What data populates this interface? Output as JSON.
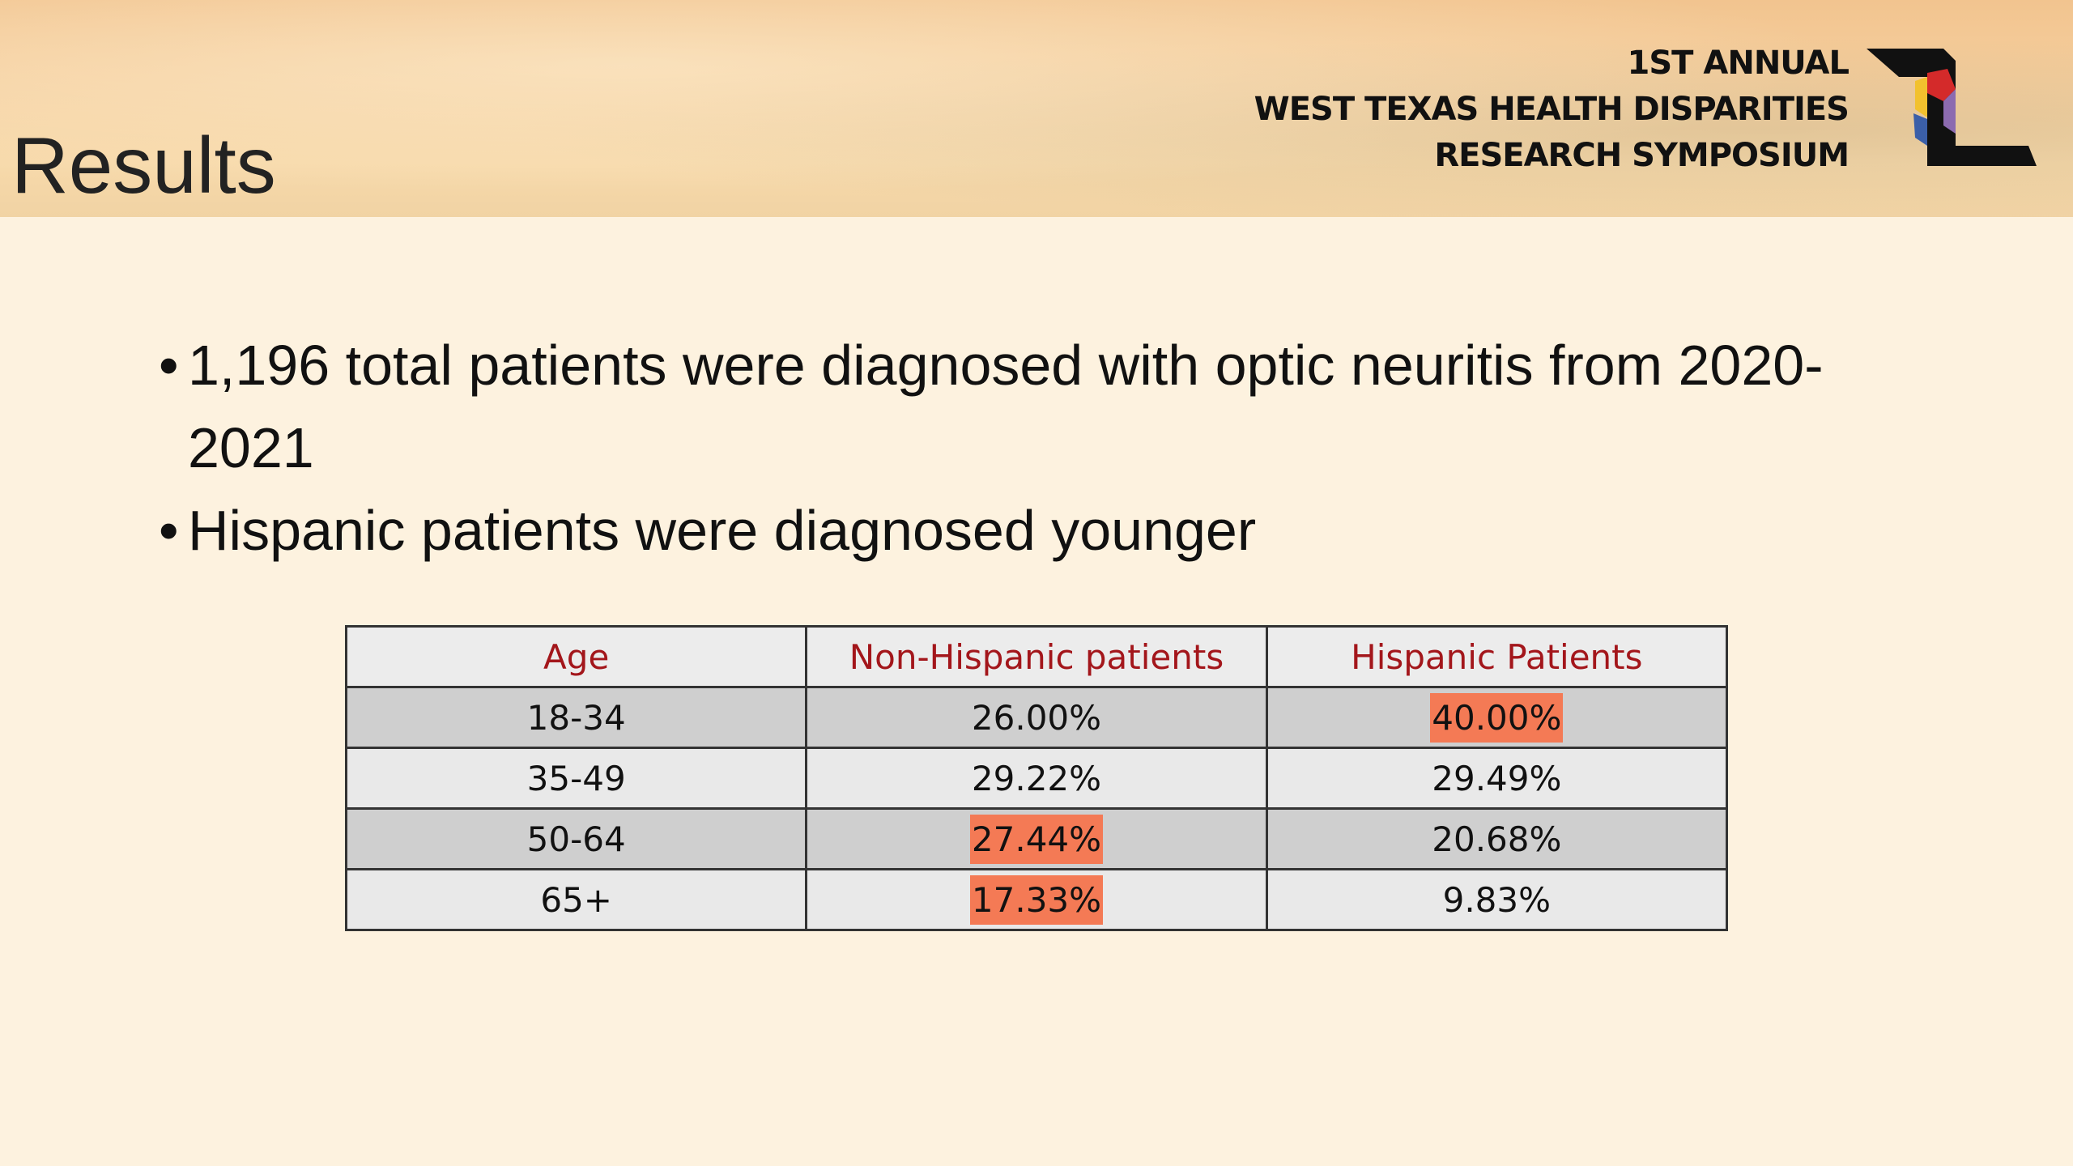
{
  "header": {
    "title": "Results",
    "event": [
      "1ST ANNUAL",
      "WEST TEXAS HEALTH DISPARITIES",
      "RESEARCH SYMPOSIUM"
    ]
  },
  "bullets": [
    "1,196 total patients were diagnosed with optic neuritis from 2020-2021",
    "Hispanic patients were diagnosed younger"
  ],
  "table": {
    "header": [
      "Age",
      "Non-Hispanic patients",
      "Hispanic Patients"
    ],
    "rows": [
      [
        "18-34",
        "26.00%",
        "40.00%"
      ],
      [
        "35-49",
        "29.22%",
        "29.49%"
      ],
      [
        "50-64",
        "27.44%",
        "20.68%"
      ],
      [
        "65+",
        "17.33%",
        "9.83%"
      ]
    ],
    "highlight_color": "#f47a55",
    "highlighted": [
      [
        0,
        2
      ],
      [
        2,
        1
      ],
      [
        3,
        1
      ]
    ]
  }
}
